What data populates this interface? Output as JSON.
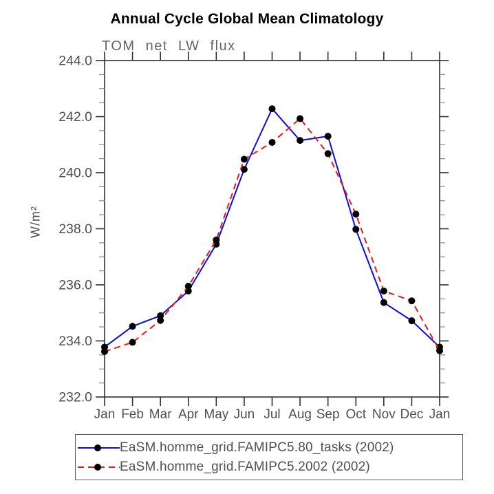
{
  "header": {
    "title": "Annual Cycle Global Mean Climatology",
    "subtitle": "TOM net LW flux"
  },
  "axes": {
    "ylabel": "W/m²",
    "ytick_labels": [
      "232.0",
      "234.0",
      "236.0",
      "238.0",
      "240.0",
      "242.0",
      "244.0"
    ]
  },
  "chart_data": {
    "type": "line",
    "title": "Annual Cycle Global Mean Climatology",
    "subtitle": "TOM net LW flux",
    "xlabel": "",
    "ylabel": "W/m²",
    "categories": [
      "Jan",
      "Feb",
      "Mar",
      "Apr",
      "May",
      "Jun",
      "Jul",
      "Aug",
      "Sep",
      "Oct",
      "Nov",
      "Dec",
      "Jan"
    ],
    "ylim": [
      232.0,
      244.0
    ],
    "ytick_major": 2.0,
    "ytick_minor": 0.5,
    "grid": false,
    "legend_position": "bottom",
    "series": [
      {
        "name": "EaSM.homme_grid.FAMIPC5.80_tasks (2002)",
        "color": "#0a0ae8",
        "style": "solid",
        "marker": "circle",
        "marker_color": "#000000",
        "values": [
          233.78,
          234.52,
          234.9,
          235.78,
          237.45,
          240.12,
          242.28,
          241.15,
          241.3,
          237.98,
          235.37,
          234.72,
          233.78
        ]
      },
      {
        "name": "EaSM.homme_grid.FAMIPC5.2002 (2002)",
        "color": "#f01414",
        "style": "dashed",
        "marker": "circle",
        "marker_color": "#000000",
        "values": [
          233.62,
          233.95,
          234.73,
          235.95,
          237.6,
          240.48,
          241.08,
          241.93,
          240.68,
          238.52,
          235.78,
          235.43,
          233.65
        ]
      }
    ]
  },
  "colors": {
    "axis": "#2e2e2e",
    "minor_tick": "#8a8a8a",
    "tick_label": "#4f4f4f",
    "title": "#000000",
    "subtitle": "#646464"
  }
}
